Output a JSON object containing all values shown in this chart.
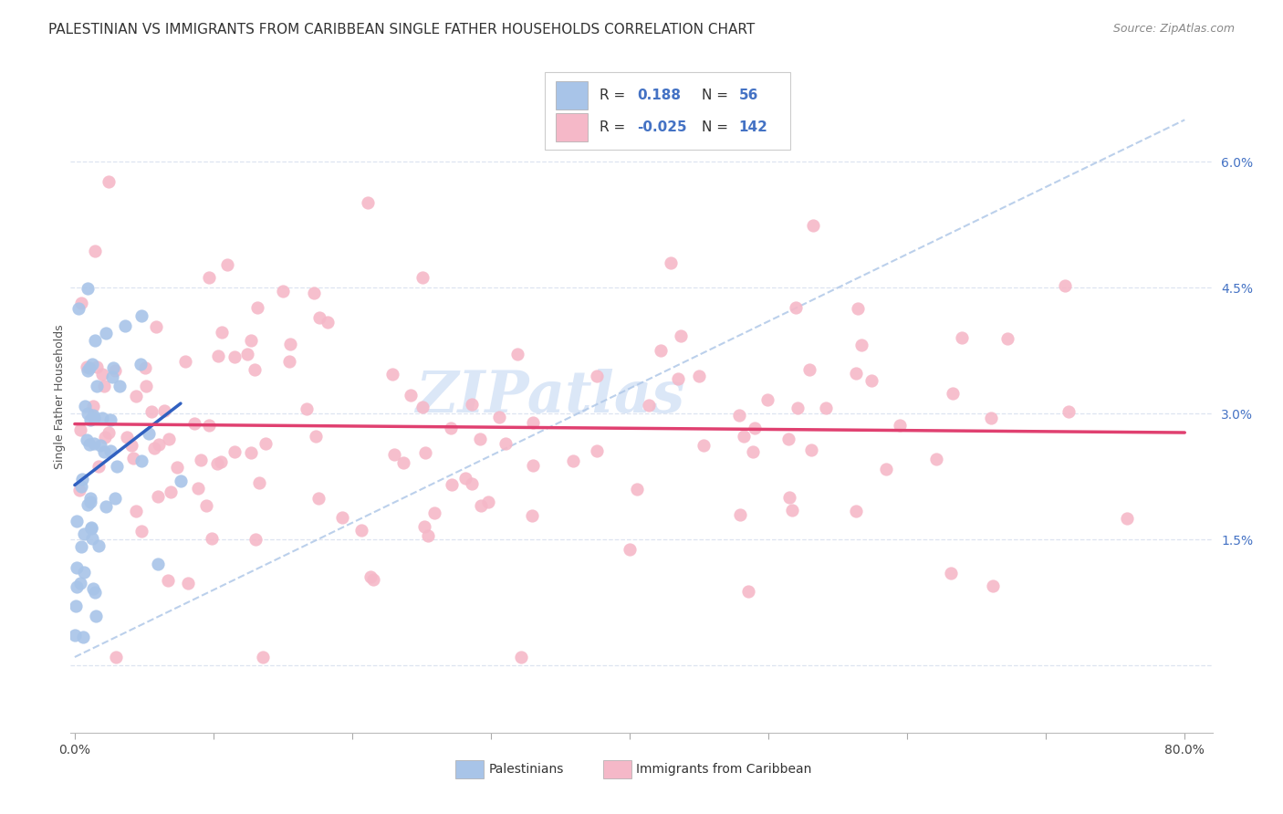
{
  "title": "PALESTINIAN VS IMMIGRANTS FROM CARIBBEAN SINGLE FATHER HOUSEHOLDS CORRELATION CHART",
  "source": "Source: ZipAtlas.com",
  "ylabel": "Single Father Households",
  "xlim": [
    -0.003,
    0.82
  ],
  "ylim": [
    -0.008,
    0.072
  ],
  "yticks": [
    0.0,
    0.015,
    0.03,
    0.045,
    0.06
  ],
  "ytick_labels": [
    "",
    "1.5%",
    "3.0%",
    "4.5%",
    "6.0%"
  ],
  "xticks": [
    0.0,
    0.1,
    0.2,
    0.3,
    0.4,
    0.5,
    0.6,
    0.7,
    0.8
  ],
  "xtick_labels": [
    "0.0%",
    "",
    "",
    "",
    "",
    "",
    "",
    "",
    "80.0%"
  ],
  "blue_scatter": "#a8c4e8",
  "pink_scatter": "#f5b8c8",
  "blue_trend": "#3060c0",
  "pink_trend": "#e04070",
  "dash_line_color": "#b0c8e8",
  "watermark_color": "#ccddf5",
  "right_tick_color": "#4472c4",
  "grid_color": "#dde4f0",
  "title_color": "#333333",
  "source_color": "#888888",
  "label_color": "#555555",
  "background": "#ffffff",
  "n_pal": 56,
  "n_car": 142,
  "R_pal": 0.188,
  "R_car": -0.025,
  "title_fontsize": 11,
  "source_fontsize": 9,
  "tick_fontsize": 10,
  "ylabel_fontsize": 9
}
